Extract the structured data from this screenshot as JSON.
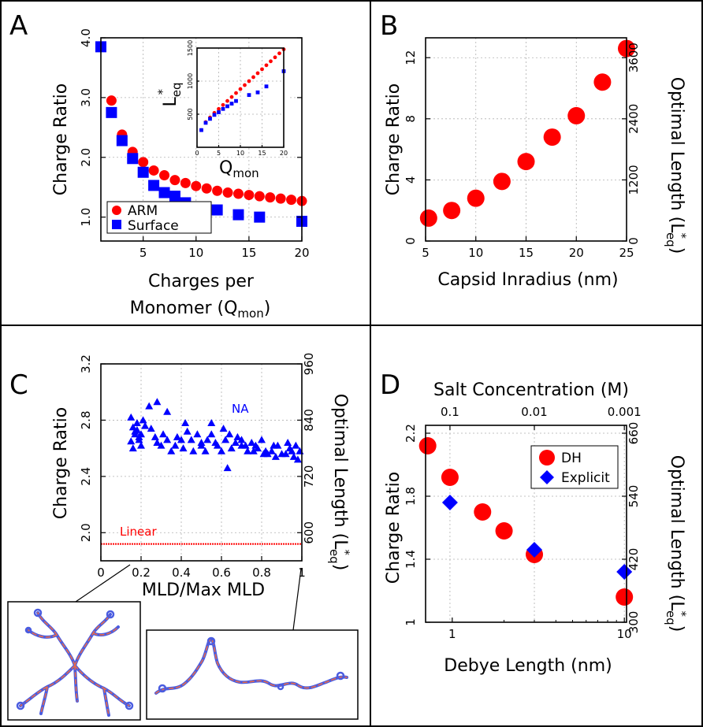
{
  "chart_data": [
    {
      "panel": "A",
      "type": "scatter",
      "xlabel_line1": "Charges per",
      "xlabel_line2": "Monomer (Q",
      "xlabel_sub": "mon",
      "xlabel_close": ")",
      "ylabel": "Charge Ratio",
      "xlim": [
        1,
        20
      ],
      "ylim": [
        0.6,
        4.0
      ],
      "xticks": [
        "5",
        "10",
        "15",
        "20"
      ],
      "yticks": [
        "1.0",
        "2.0",
        "3.0",
        "4.0"
      ],
      "legend": [
        "ARM",
        "Surface"
      ],
      "series": [
        {
          "name": "ARM",
          "marker": "circle",
          "color": "#ff0000",
          "x": [
            1,
            2,
            3,
            4,
            5,
            6,
            7,
            8,
            9,
            10,
            11,
            12,
            13,
            14,
            15,
            16,
            17,
            18,
            19,
            20
          ],
          "y": [
            3.85,
            2.95,
            2.38,
            2.09,
            1.92,
            1.78,
            1.7,
            1.62,
            1.57,
            1.52,
            1.48,
            1.44,
            1.41,
            1.39,
            1.37,
            1.35,
            1.33,
            1.31,
            1.29,
            1.27
          ]
        },
        {
          "name": "Surface",
          "marker": "square",
          "color": "#0000ff",
          "x": [
            1,
            2,
            3,
            4,
            5,
            6,
            7,
            8,
            9,
            12,
            14,
            16,
            20
          ],
          "y": [
            3.85,
            2.75,
            2.28,
            1.98,
            1.75,
            1.53,
            1.41,
            1.35,
            1.24,
            1.12,
            1.04,
            1.0,
            0.93
          ]
        }
      ],
      "inset": {
        "xlabel_main": "Q",
        "xlabel_sub": "mon",
        "ylabel_main": "L",
        "ylabel_sub": "eq",
        "ylabel_sup": "*",
        "xlim": [
          0,
          20
        ],
        "ylim": [
          0,
          1500
        ],
        "xticks": [
          "0",
          "5",
          "10",
          "15",
          "20"
        ],
        "yticks": [
          "500",
          "1000",
          "1500"
        ],
        "series": [
          {
            "name": "ARM",
            "color": "#ff0000",
            "x": [
              1,
              2,
              3,
              4,
              5,
              6,
              7,
              8,
              9,
              10,
              11,
              12,
              13,
              14,
              15,
              16,
              17,
              18,
              19,
              20
            ],
            "y": [
              260,
              380,
              450,
              520,
              580,
              640,
              700,
              760,
              820,
              880,
              940,
              1000,
              1060,
              1120,
              1180,
              1240,
              1300,
              1360,
              1420,
              1480
            ]
          },
          {
            "name": "Surface",
            "color": "#0000ff",
            "x": [
              1,
              2,
              3,
              4,
              5,
              6,
              7,
              8,
              9,
              12,
              14,
              16,
              20
            ],
            "y": [
              260,
              370,
              430,
              490,
              530,
              580,
              620,
              660,
              700,
              790,
              830,
              920,
              1150
            ]
          }
        ]
      }
    },
    {
      "panel": "B",
      "type": "scatter",
      "xlabel": "Capsid Inradius (nm)",
      "ylabel": "Charge Ratio",
      "y2label_main": "Optimal Length (L",
      "y2label_sub": "eq",
      "y2label_sup": "*",
      "y2label_close": ")",
      "xlim": [
        5,
        25
      ],
      "ylim": [
        0,
        13.3
      ],
      "xticks": [
        "5",
        "10",
        "15",
        "20",
        "25"
      ],
      "yticks": [
        "0",
        "4",
        "8",
        "12"
      ],
      "y2ticks": [
        "0",
        "1200",
        "2400",
        "3600"
      ],
      "series": [
        {
          "name": "ARM",
          "marker": "circle",
          "color": "#ff0000",
          "x": [
            5.3,
            7.6,
            10,
            12.6,
            15,
            17.6,
            20,
            22.6,
            25
          ],
          "y": [
            1.5,
            2.0,
            2.8,
            3.9,
            5.2,
            6.8,
            8.2,
            10.4,
            12.6
          ]
        }
      ]
    },
    {
      "panel": "C",
      "type": "scatter",
      "xlabel": "MLD/Max MLD",
      "ylabel": "Charge Ratio",
      "y2label_main": "Optimal Length (L",
      "y2label_sub": "eq",
      "y2label_sup": "*",
      "y2label_close": ")",
      "xlim": [
        0,
        1
      ],
      "ylim": [
        1.8,
        3.2
      ],
      "xticks": [
        "0",
        "0.2",
        "0.4",
        "0.6",
        "0.8",
        "1"
      ],
      "yticks": [
        "2.0",
        "2.4",
        "2.8",
        "3.2"
      ],
      "y2ticks": [
        "600",
        "720",
        "840",
        "960"
      ],
      "annotation_na": "NA",
      "annotation_linear": "Linear",
      "linear_value": 1.92,
      "series": [
        {
          "name": "NA",
          "marker": "triangle",
          "color": "#0000ff",
          "x": [
            0.15,
            0.16,
            0.17,
            0.18,
            0.19,
            0.2,
            0.21,
            0.15,
            0.16,
            0.17,
            0.18,
            0.19,
            0.2,
            0.22,
            0.24,
            0.25,
            0.27,
            0.28,
            0.3,
            0.31,
            0.33,
            0.35,
            0.37,
            0.38,
            0.4,
            0.41,
            0.43,
            0.45,
            0.46,
            0.48,
            0.5,
            0.52,
            0.53,
            0.55,
            0.57,
            0.58,
            0.6,
            0.62,
            0.63,
            0.65,
            0.67,
            0.68,
            0.7,
            0.72,
            0.73,
            0.75,
            0.77,
            0.78,
            0.8,
            0.82,
            0.83,
            0.85,
            0.87,
            0.88,
            0.9,
            0.92,
            0.94,
            0.95,
            0.96,
            0.97,
            0.98,
            0.99,
            0.28,
            0.33,
            0.42,
            0.5,
            0.55,
            0.61,
            0.64,
            0.7,
            0.76,
            0.81,
            0.86,
            0.93
          ],
          "y": [
            2.82,
            2.75,
            2.72,
            2.78,
            2.68,
            2.7,
            2.8,
            2.65,
            2.6,
            2.7,
            2.73,
            2.66,
            2.62,
            2.76,
            2.9,
            2.74,
            2.68,
            2.64,
            2.62,
            2.7,
            2.66,
            2.58,
            2.62,
            2.68,
            2.66,
            2.6,
            2.72,
            2.66,
            2.58,
            2.7,
            2.62,
            2.58,
            2.66,
            2.7,
            2.64,
            2.62,
            2.58,
            2.66,
            2.46,
            2.6,
            2.64,
            2.68,
            2.66,
            2.62,
            2.58,
            2.64,
            2.62,
            2.6,
            2.66,
            2.58,
            2.56,
            2.58,
            2.54,
            2.62,
            2.56,
            2.56,
            2.6,
            2.58,
            2.54,
            2.62,
            2.52,
            2.58,
            2.93,
            2.86,
            2.78,
            2.64,
            2.78,
            2.74,
            2.7,
            2.62,
            2.58,
            2.56,
            2.62,
            2.64
          ]
        }
      ]
    },
    {
      "panel": "D",
      "type": "scatter",
      "xlabel": "Debye Length (nm)",
      "x2label": "Salt Concentration (M)",
      "ylabel": "Charge Ratio",
      "y2label_main": "Optimal Length (L",
      "y2label_sub": "eq",
      "y2label_sup": "*",
      "y2label_close": ")",
      "xscale": "log",
      "xlim": [
        0.7,
        10.3
      ],
      "ylim": [
        1.0,
        2.25
      ],
      "xticks": [
        "1",
        "10"
      ],
      "x2ticks": [
        "0.1",
        "0.01",
        "0.001"
      ],
      "yticks": [
        "1",
        "1.4",
        "1.8",
        "2.2"
      ],
      "y2ticks": [
        "300",
        "420",
        "540",
        "660"
      ],
      "legend": [
        "DH",
        "Explicit"
      ],
      "series": [
        {
          "name": "DH",
          "marker": "circle",
          "color": "#ff0000",
          "x": [
            0.72,
            0.97,
            1.5,
            2.0,
            3.0,
            10.0
          ],
          "y": [
            2.12,
            1.92,
            1.7,
            1.58,
            1.43,
            1.16
          ]
        },
        {
          "name": "Explicit",
          "marker": "diamond",
          "color": "#0000ff",
          "x": [
            0.97,
            3.0,
            10.0
          ],
          "y": [
            1.76,
            1.46,
            1.32
          ]
        }
      ]
    }
  ]
}
